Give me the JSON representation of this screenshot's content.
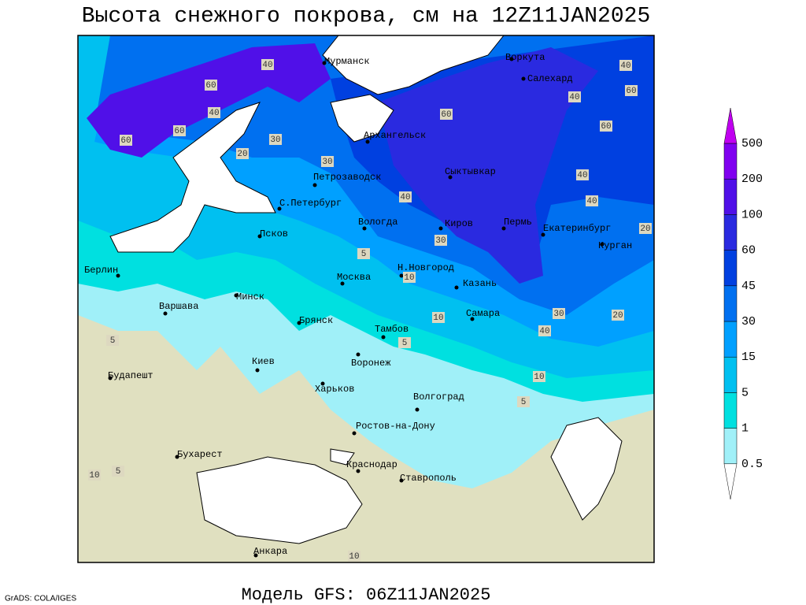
{
  "title": "Высота снежного покрова, см на 12Z11JAN2025",
  "footer": "Модель GFS: 06Z11JAN2025",
  "credit": "GrADS: COLA/IGES",
  "legend": {
    "levels": [
      0.5,
      1,
      5,
      15,
      30,
      45,
      60,
      100,
      200,
      500
    ],
    "colors": [
      "#ffffff",
      "#a0f0f8",
      "#00e0e0",
      "#00c0f0",
      "#00a0ff",
      "#0070f0",
      "#0040e0",
      "#2a2ae0",
      "#5010e8",
      "#8000f0",
      "#c000f0"
    ]
  },
  "cities": [
    "Мурманск",
    "Воркута",
    "Салехард",
    "Архангельск",
    "Сыктывкар",
    "Петрозаводск",
    "С.Петербург",
    "Вологда",
    "Киров",
    "Пермь",
    "Екатеринбург",
    "Курган",
    "Псков",
    "Берлин",
    "Н.Новгород",
    "Москва",
    "Казань",
    "Минск",
    "Варшава",
    "Брянск",
    "Тамбов",
    "Самара",
    "Киев",
    "Воронеж",
    "Харьков",
    "Будапешт",
    "Волгоград",
    "Ростов-на-Дону",
    "Бухарест",
    "Краснодар",
    "Ставрополь",
    "Анкара"
  ],
  "contour_labels": [
    "40",
    "60",
    "40",
    "60",
    "30",
    "20",
    "60",
    "40",
    "60",
    "40",
    "60",
    "40",
    "30",
    "40",
    "60",
    "40",
    "20",
    "30",
    "5",
    "10",
    "10",
    "40",
    "30",
    "20",
    "5",
    "10",
    "5",
    "5",
    "10",
    "5",
    "10"
  ]
}
